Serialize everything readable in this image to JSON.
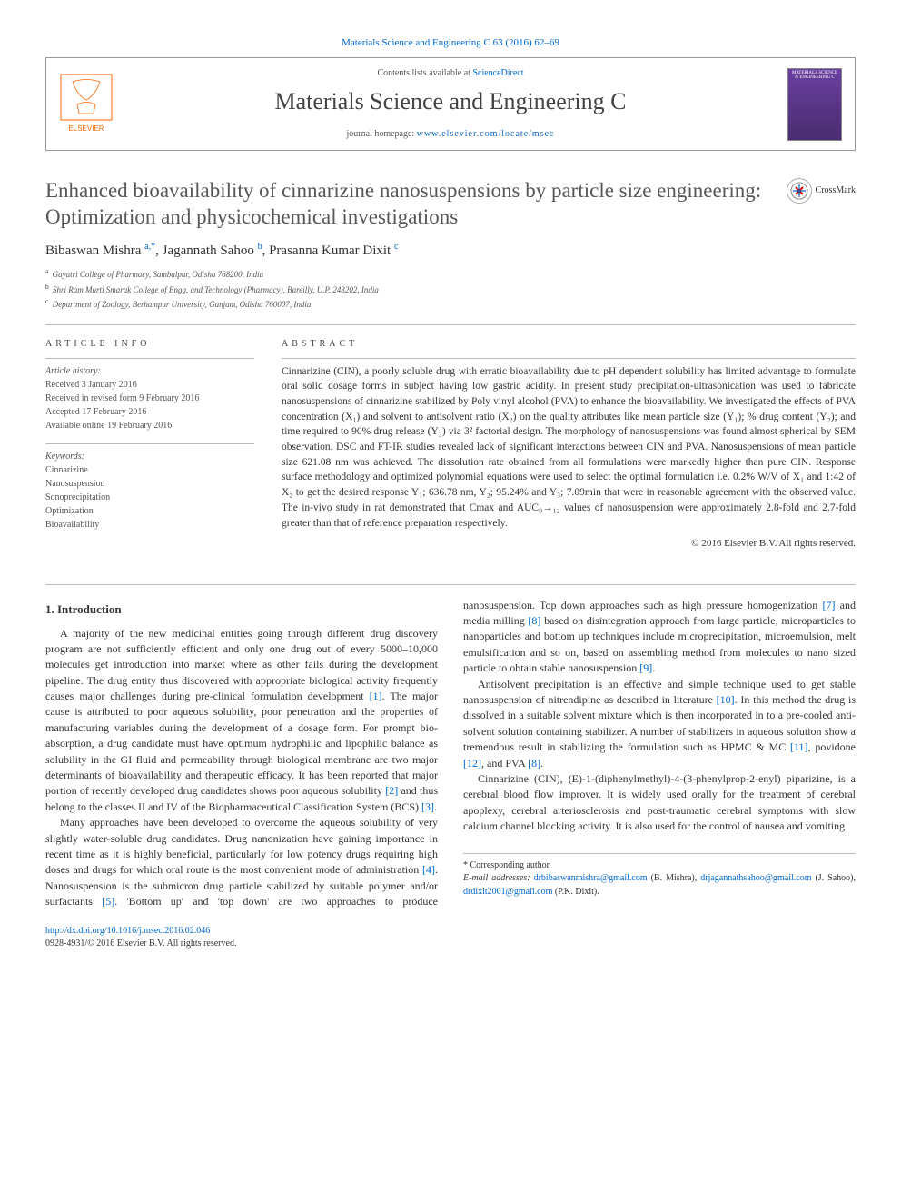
{
  "top_link": "Materials Science and Engineering C 63 (2016) 62–69",
  "header": {
    "contents_line_prefix": "Contents lists available at ",
    "contents_link": "ScienceDirect",
    "journal_name": "Materials Science and Engineering C",
    "homepage_prefix": "journal homepage: ",
    "homepage_url": "www.elsevier.com/locate/msec",
    "cover_text": "MATERIALS SCIENCE & ENGINEERING C",
    "publisher": "ELSEVIER"
  },
  "crossmark_label": "CrossMark",
  "article": {
    "title": "Enhanced bioavailability of cinnarizine nanosuspensions by particle size engineering: Optimization and physicochemical investigations",
    "authors_html": "Bibaswan Mishra <sup>a,*</sup>, Jagannath Sahoo <sup>b</sup>, Prasanna Kumar Dixit <sup>c</sup>",
    "affiliations": [
      {
        "sup": "a",
        "text": "Gayatri College of Pharmacy, Sambalpur, Odisha 768200, India"
      },
      {
        "sup": "b",
        "text": "Shri Ram Murti Smarak College of Engg. and Technology (Pharmacy), Bareilly, U.P. 243202, India"
      },
      {
        "sup": "c",
        "text": "Department of Zoology, Berhampur University, Ganjam, Odisha 760007, India"
      }
    ]
  },
  "info": {
    "heading_article_info": "ARTICLE INFO",
    "heading_abstract": "ABSTRACT",
    "history_label": "Article history:",
    "history": [
      "Received 3 January 2016",
      "Received in revised form 9 February 2016",
      "Accepted 17 February 2016",
      "Available online 19 February 2016"
    ],
    "keywords_label": "Keywords:",
    "keywords": [
      "Cinnarizine",
      "Nanosuspension",
      "Sonoprecipitation",
      "Optimization",
      "Bioavailability"
    ]
  },
  "abstract": "Cinnarizine (CIN), a poorly soluble drug with erratic bioavailability due to pH dependent solubility has limited advantage to formulate oral solid dosage forms in subject having low gastric acidity. In present study precipitation-ultrasonication was used to fabricate nanosuspensions of cinnarizine stabilized by Poly vinyl alcohol (PVA) to enhance the bioavailability. We investigated the effects of PVA concentration (X₁) and solvent to antisolvent ratio (X₂) on the quality attributes like mean particle size (Y₁); % drug content (Y₂); and time required to 90% drug release (Y₃) via 3² factorial design. The morphology of nanosuspensions was found almost spherical by SEM observation. DSC and FT-IR studies revealed lack of significant interactions between CIN and PVA. Nanosuspensions of mean particle size 621.08 nm was achieved. The dissolution rate obtained from all formulations were markedly higher than pure CIN. Response surface methodology and optimized polynomial equations were used to select the optimal formulation i.e. 0.2% W/V of X₁ and 1:42 of X₂ to get the desired response Y₁; 636.78 nm, Y₂; 95.24% and Y₃; 7.09min that were in reasonable agreement with the observed value. The in-vivo study in rat demonstrated that Cmax and AUC₀→₁₂ values of nanosuspension were approximately 2.8-fold and 2.7-fold greater than that of reference preparation respectively.",
  "abstract_copyright": "© 2016 Elsevier B.V. All rights reserved.",
  "section_intro_heading": "1. Introduction",
  "intro_paragraphs": [
    "A majority of the new medicinal entities going through different drug discovery program are not sufficiently efficient and only one drug out of every 5000–10,000 molecules get introduction into market where as other fails during the development pipeline. The drug entity thus discovered with appropriate biological activity frequently causes major challenges during pre-clinical formulation development [1]. The major cause is attributed to poor aqueous solubility, poor penetration and the properties of manufacturing variables during the development of a dosage form. For prompt bio-absorption, a drug candidate must have optimum hydrophilic and lipophilic balance as solubility in the GI fluid and permeability through biological membrane are two major determinants of bioavailability and therapeutic efficacy. It has been reported that major portion of recently developed drug candidates shows poor aqueous solubility [2] and thus belong to the classes II and IV of the Biopharmaceutical Classification System (BCS) [3].",
    "Many approaches have been developed to overcome the aqueous solubility of very slightly water-soluble drug candidates. Drug nanonization have gaining importance in recent time as it is highly beneficial, particularly for low potency drugs requiring high doses and drugs for which oral route is the most convenient mode of administration [4]. Nanosuspension is the submicron drug particle stabilized by suitable polymer and/or surfactants [5]. 'Bottom up' and 'top down' are two approaches to produce nanosuspension. Top down approaches such as high pressure homogenization [7] and media milling [8] based on disintegration approach from large particle, microparticles to nanoparticles and bottom up techniques include microprecipitation, microemulsion, melt emulsification and so on, based on assembling method from molecules to nano sized particle to obtain stable nanosuspension [9].",
    "Antisolvent precipitation is an effective and simple technique used to get stable nanosuspension of nitrendipine as described in literature [10]. In this method the drug is dissolved in a suitable solvent mixture which is then incorporated in to a pre-cooled anti-solvent solution containing stabilizer. A number of stabilizers in aqueous solution show a tremendous result in stabilizing the formulation such as HPMC & MC [11], povidone [12], and PVA [8].",
    "Cinnarizine (CIN), (E)-1-(diphenylmethyl)-4-(3-phenylprop-2-enyl) piparizine, is a cerebral blood flow improver. It is widely used orally for the treatment of cerebral apoplexy, cerebral arteriosclerosis and post-traumatic cerebral symptoms with slow calcium channel blocking activity. It is also used for the control of nausea and vomiting"
  ],
  "footer": {
    "corresponding": "* Corresponding author.",
    "email_label": "E-mail addresses:",
    "emails": [
      {
        "addr": "drbibaswanmishra@gmail.com",
        "who": "(B. Mishra),"
      },
      {
        "addr": "drjagannathsahoo@gmail.com",
        "who": "(J. Sahoo),"
      },
      {
        "addr": "drdixit2001@gmail.com",
        "who": "(P.K. Dixit)."
      }
    ],
    "doi": "http://dx.doi.org/10.1016/j.msec.2016.02.046",
    "issn_line": "0928-4931/© 2016 Elsevier B.V. All rights reserved."
  },
  "colors": {
    "link": "#0066cc",
    "text": "#333333",
    "muted": "#555555",
    "border": "#bbbbbb",
    "title": "#565656",
    "elsevier_orange": "#ff6600"
  }
}
